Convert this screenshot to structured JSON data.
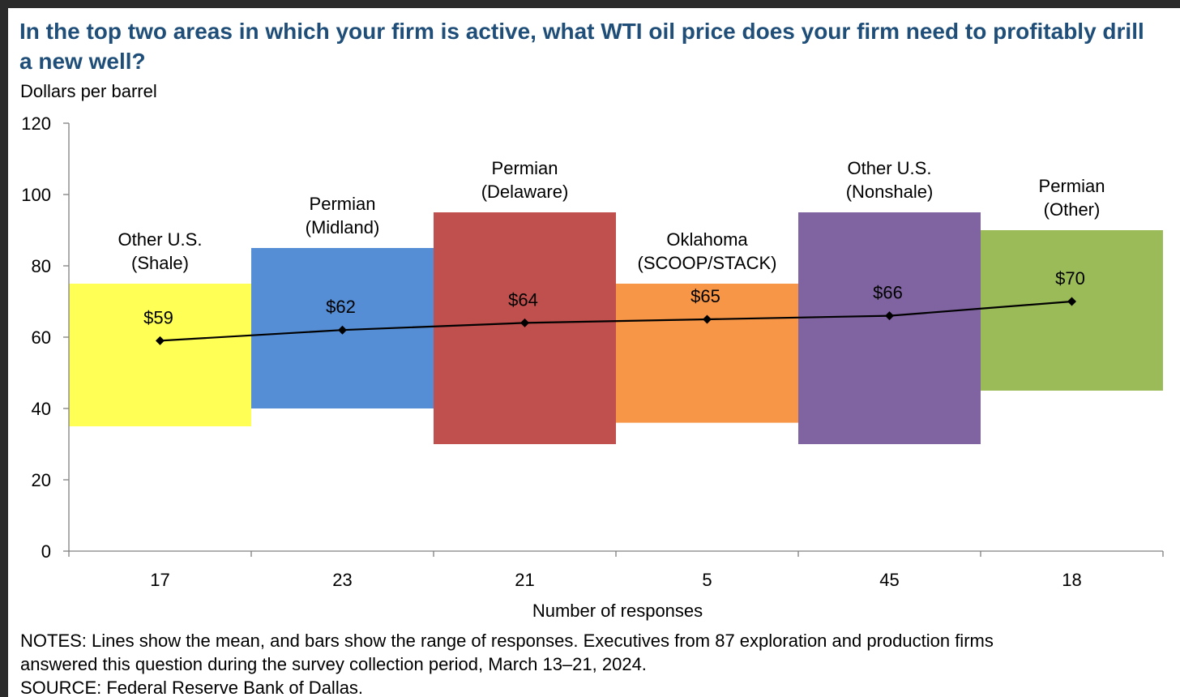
{
  "title": "In the top two areas in which your firm is active, what WTI oil price does your firm need to profitably drill a new well?",
  "notes": {
    "line1": "NOTES: Lines show the mean, and bars show the range of responses. Executives from 87 exploration and production firms",
    "line2": "answered this question during the survey collection period, March 13–21, 2024.",
    "source": "SOURCE: Federal Reserve Bank of Dallas."
  },
  "chart_data": {
    "type": "bar",
    "ylabel": "Dollars per barrel",
    "xlabel": "Number of responses",
    "ylim": [
      0,
      120
    ],
    "yticks": [
      "0",
      "20",
      "40",
      "60",
      "80",
      "100",
      "120"
    ],
    "categories": [
      {
        "name_line1": "Other U.S.",
        "name_line2": "(Shale)",
        "responses": "17",
        "low": 35,
        "high": 75,
        "mean": 59,
        "mean_label": "$59",
        "color": "#ffff55"
      },
      {
        "name_line1": "Permian",
        "name_line2": "(Midland)",
        "responses": "23",
        "low": 40,
        "high": 85,
        "mean": 62,
        "mean_label": "$62",
        "color": "#558ed5"
      },
      {
        "name_line1": "Permian",
        "name_line2": "(Delaware)",
        "responses": "21",
        "low": 30,
        "high": 95,
        "mean": 64,
        "mean_label": "$64",
        "color": "#c0504d"
      },
      {
        "name_line1": "Oklahoma",
        "name_line2": "(SCOOP/STACK)",
        "responses": "5",
        "low": 36,
        "high": 75,
        "mean": 65,
        "mean_label": "$65",
        "color": "#f79646"
      },
      {
        "name_line1": "Other U.S.",
        "name_line2": "(Nonshale)",
        "responses": "45",
        "low": 30,
        "high": 95,
        "mean": 66,
        "mean_label": "$66",
        "color": "#8064a2"
      },
      {
        "name_line1": "Permian",
        "name_line2": "(Other)",
        "responses": "18",
        "low": 45,
        "high": 90,
        "mean": 70,
        "mean_label": "$70",
        "color": "#9bbb59"
      }
    ],
    "mean_line_color": "#000000",
    "axis_color": "#808080"
  }
}
